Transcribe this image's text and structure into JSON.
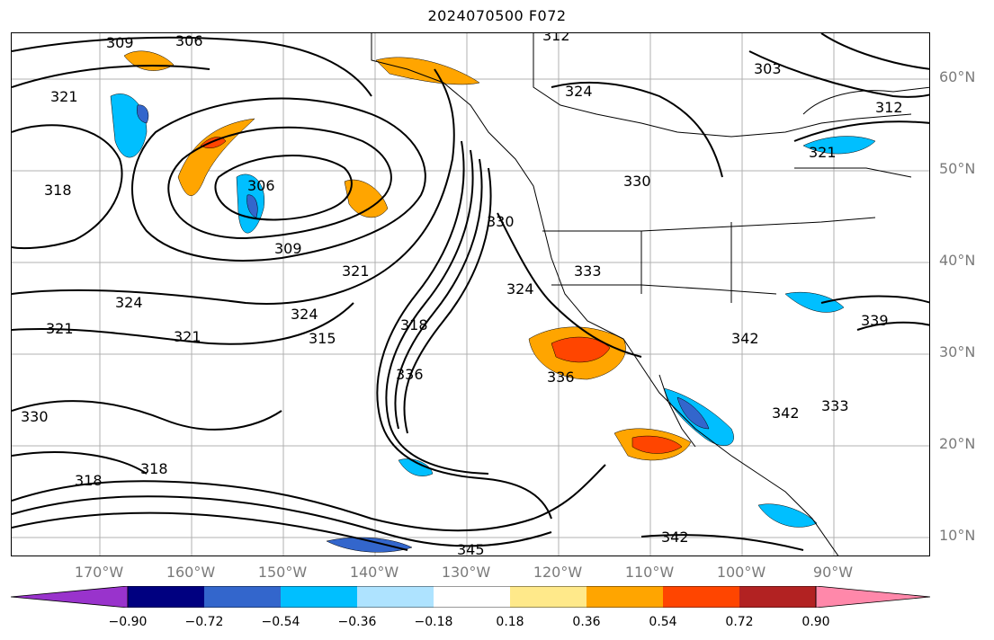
{
  "title": "2024070500 F072",
  "lat_labels": [
    "60°N",
    "50°N",
    "40°N",
    "30°N",
    "20°N",
    "10°N"
  ],
  "lon_labels": [
    "170°W",
    "160°W",
    "150°W",
    "140°W",
    "130°W",
    "120°W",
    "110°W",
    "100°W",
    "90°W"
  ],
  "contour_labels": [
    "309",
    "306",
    "321",
    "318",
    "324",
    "321",
    "321",
    "306",
    "309",
    "321",
    "324",
    "315",
    "318",
    "336",
    "330",
    "324",
    "330",
    "318",
    "318",
    "312",
    "324",
    "303",
    "312",
    "321",
    "330",
    "333",
    "342",
    "339",
    "336",
    "342",
    "333",
    "342",
    "345"
  ],
  "colorbar": {
    "ticks": [
      "−0.90",
      "−0.72",
      "−0.54",
      "−0.36",
      "−0.18",
      "0.18",
      "0.36",
      "0.54",
      "0.72",
      "0.90"
    ],
    "colors": [
      "#9933cc",
      "#000080",
      "#3366cc",
      "#00bfff",
      "#aee3ff",
      "#ffffff",
      "#ffe98a",
      "#ffa500",
      "#ff4500",
      "#b22222",
      "#ff88aa"
    ]
  }
}
